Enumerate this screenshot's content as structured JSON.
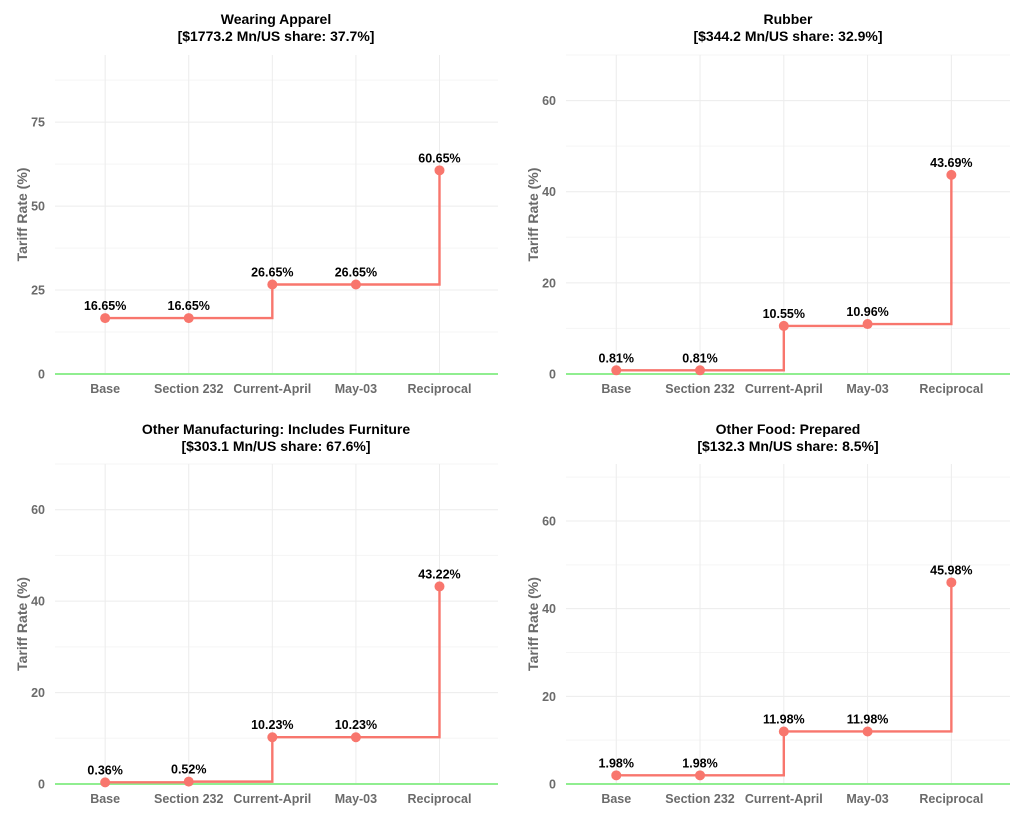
{
  "chart_data": [
    {
      "type": "line",
      "step": true,
      "title": "Wearing Apparel",
      "subtitle": "[$1773.2 Mn/US share: 37.7%]",
      "xlabel": "",
      "ylabel": "Tariff Rate (%)",
      "categories": [
        "Base",
        "Section 232",
        "Current-April",
        "May-03",
        "Reciprocal"
      ],
      "values": [
        16.65,
        16.65,
        26.65,
        26.65,
        60.65
      ],
      "data_labels": [
        "16.65%",
        "16.65%",
        "26.65%",
        "26.65%",
        "60.65%"
      ],
      "yticks": [
        0,
        25,
        50,
        75
      ],
      "ylim": [
        0,
        95
      ],
      "grid": true
    },
    {
      "type": "line",
      "step": true,
      "title": "Rubber",
      "subtitle": "[$344.2 Mn/US share: 32.9%]",
      "xlabel": "",
      "ylabel": "Tariff Rate (%)",
      "categories": [
        "Base",
        "Section 232",
        "Current-April",
        "May-03",
        "Reciprocal"
      ],
      "values": [
        0.81,
        0.81,
        10.55,
        10.96,
        43.69
      ],
      "data_labels": [
        "0.81%",
        "0.81%",
        "10.55%",
        "10.96%",
        "43.69%"
      ],
      "yticks": [
        0,
        20,
        40,
        60
      ],
      "ylim": [
        0,
        70
      ],
      "grid": true
    },
    {
      "type": "line",
      "step": true,
      "title": "Other Manufacturing: Includes Furniture",
      "subtitle": "[$303.1 Mn/US share: 67.6%]",
      "xlabel": "",
      "ylabel": "Tariff Rate (%)",
      "categories": [
        "Base",
        "Section 232",
        "Current-April",
        "May-03",
        "Reciprocal"
      ],
      "values": [
        0.36,
        0.52,
        10.23,
        10.23,
        43.22
      ],
      "data_labels": [
        "0.36%",
        "0.52%",
        "10.23%",
        "10.23%",
        "43.22%"
      ],
      "yticks": [
        0,
        20,
        40,
        60
      ],
      "ylim": [
        0,
        70
      ],
      "grid": true
    },
    {
      "type": "line",
      "step": true,
      "title": "Other Food: Prepared",
      "subtitle": "[$132.3 Mn/US share: 8.5%]",
      "xlabel": "",
      "ylabel": "Tariff Rate (%)",
      "categories": [
        "Base",
        "Section 232",
        "Current-April",
        "May-03",
        "Reciprocal"
      ],
      "values": [
        1.98,
        1.98,
        11.98,
        11.98,
        45.98
      ],
      "data_labels": [
        "1.98%",
        "1.98%",
        "11.98%",
        "11.98%",
        "45.98%"
      ],
      "yticks": [
        0,
        20,
        40,
        60
      ],
      "ylim": [
        0,
        73
      ],
      "grid": true
    }
  ],
  "colors": {
    "series": "#f8766d",
    "baseline": "#90ee90",
    "grid": "#ececec"
  }
}
